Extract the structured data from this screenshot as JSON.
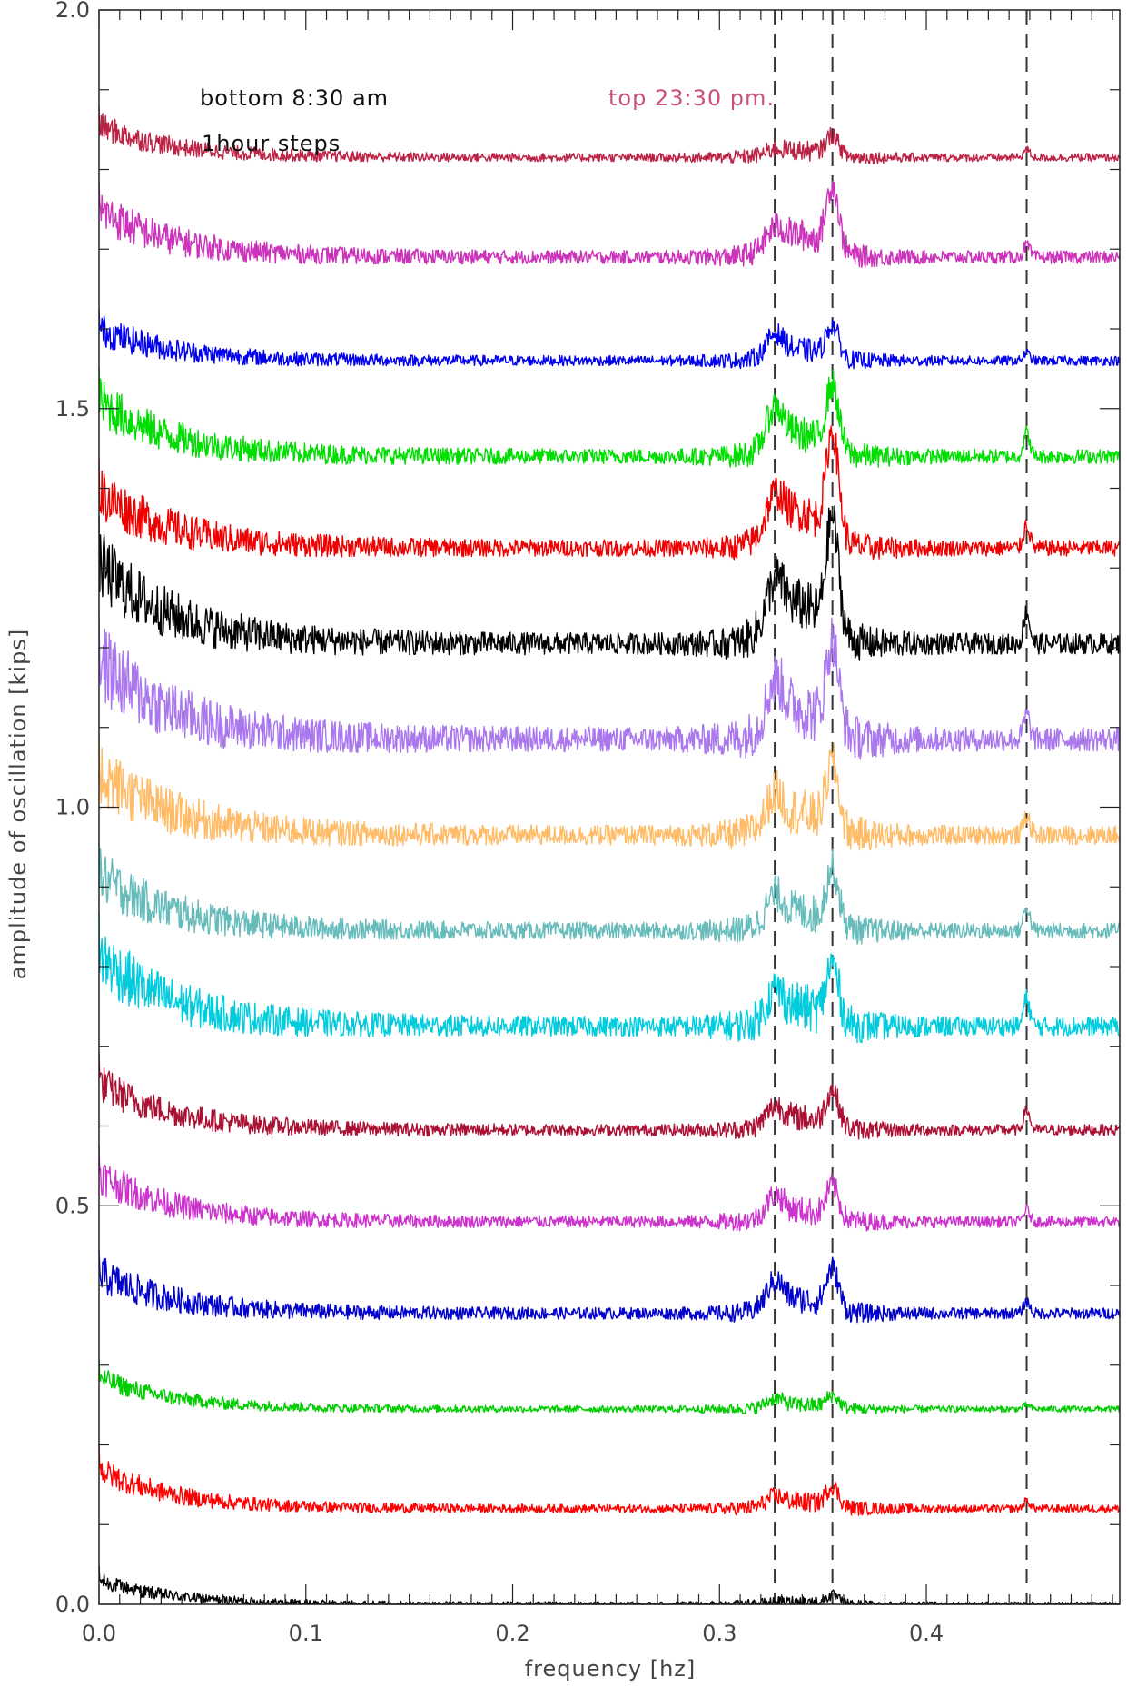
{
  "chart_data": {
    "type": "line",
    "title": "",
    "xlabel": "frequency [hz]",
    "ylabel": "amplitude of oscillation [kips]",
    "xlim": [
      0.0,
      0.4935
    ],
    "ylim": [
      0.0,
      2.0
    ],
    "xticks": [
      {
        "value": 0.0,
        "label": "0.0"
      },
      {
        "value": 0.1,
        "label": "0.1"
      },
      {
        "value": 0.2,
        "label": "0.2"
      },
      {
        "value": 0.3,
        "label": "0.3"
      },
      {
        "value": 0.4,
        "label": "0.4"
      }
    ],
    "yticks": [
      {
        "value": 0.0,
        "label": "0.0"
      },
      {
        "value": 0.5,
        "label": "0.5"
      },
      {
        "value": 1.0,
        "label": "1.0"
      },
      {
        "value": 1.5,
        "label": "1.5"
      },
      {
        "value": 2.0,
        "label": "2.0"
      }
    ],
    "x_minor_step": 0.01,
    "y_minor_step": 0.1,
    "reference_lines_x": [
      0.3267,
      0.3546,
      0.4485
    ],
    "reference_line_style": "dashed",
    "annotations": [
      {
        "text": "bottom 8:30 am",
        "color": "#111111"
      },
      {
        "text": "top 23:30 pm.",
        "color": "#c8507a"
      },
      {
        "text": "1hour steps",
        "color": "#111111"
      }
    ],
    "peaks_hz": [
      0.3267,
      0.3546,
      0.4485
    ],
    "series": [
      {
        "baseline": 0.0,
        "low_freq_level": 0.03,
        "peak_heights": [
          0.0,
          0.01,
          0.0
        ],
        "noise": 0.003,
        "color": "#000000"
      },
      {
        "baseline": 0.12,
        "low_freq_level": 0.05,
        "peak_heights": [
          0.01,
          0.025,
          0.01
        ],
        "noise": 0.005,
        "color": "#ff0000"
      },
      {
        "baseline": 0.245,
        "low_freq_level": 0.04,
        "peak_heights": [
          0.01,
          0.015,
          0.005
        ],
        "noise": 0.004,
        "color": "#00cc00"
      },
      {
        "baseline": 0.365,
        "low_freq_level": 0.05,
        "peak_heights": [
          0.03,
          0.05,
          0.015
        ],
        "noise": 0.007,
        "color": "#0000cc"
      },
      {
        "baseline": 0.48,
        "low_freq_level": 0.06,
        "peak_heights": [
          0.025,
          0.04,
          0.015
        ],
        "noise": 0.007,
        "color": "#cc33cc"
      },
      {
        "baseline": 0.595,
        "low_freq_level": 0.06,
        "peak_heights": [
          0.02,
          0.045,
          0.025
        ],
        "noise": 0.007,
        "color": "#aa1133"
      },
      {
        "baseline": 0.725,
        "low_freq_level": 0.09,
        "peak_heights": [
          0.03,
          0.07,
          0.035
        ],
        "noise": 0.012,
        "color": "#00ccdd"
      },
      {
        "baseline": 0.845,
        "low_freq_level": 0.07,
        "peak_heights": [
          0.03,
          0.07,
          0.03
        ],
        "noise": 0.01,
        "color": "#66bbbb"
      },
      {
        "baseline": 0.965,
        "low_freq_level": 0.08,
        "peak_heights": [
          0.035,
          0.08,
          0.025
        ],
        "noise": 0.012,
        "color": "#ffbb66"
      },
      {
        "baseline": 1.085,
        "low_freq_level": 0.1,
        "peak_heights": [
          0.05,
          0.11,
          0.03
        ],
        "noise": 0.015,
        "color": "#aa77ee"
      },
      {
        "baseline": 1.205,
        "low_freq_level": 0.1,
        "peak_heights": [
          0.05,
          0.14,
          0.04
        ],
        "noise": 0.013,
        "color": "#000000"
      },
      {
        "baseline": 1.325,
        "low_freq_level": 0.07,
        "peak_heights": [
          0.04,
          0.13,
          0.03
        ],
        "noise": 0.01,
        "color": "#ee0000"
      },
      {
        "baseline": 1.44,
        "low_freq_level": 0.07,
        "peak_heights": [
          0.045,
          0.08,
          0.03
        ],
        "noise": 0.009,
        "color": "#00dd00"
      },
      {
        "baseline": 1.56,
        "low_freq_level": 0.04,
        "peak_heights": [
          0.025,
          0.04,
          0.01
        ],
        "noise": 0.006,
        "color": "#0000ee"
      },
      {
        "baseline": 1.69,
        "low_freq_level": 0.06,
        "peak_heights": [
          0.02,
          0.08,
          0.015
        ],
        "noise": 0.008,
        "color": "#cc33bb"
      },
      {
        "baseline": 1.815,
        "low_freq_level": 0.04,
        "peak_heights": [
          0.005,
          0.025,
          0.01
        ],
        "noise": 0.005,
        "color": "#bb2244"
      }
    ]
  }
}
